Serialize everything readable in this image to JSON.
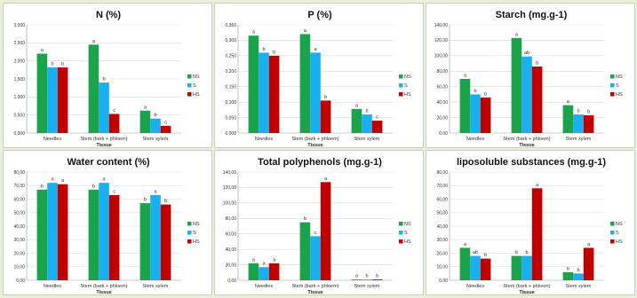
{
  "colors": {
    "NS": "#1aa34a",
    "S": "#1ab0f0",
    "HS": "#c00000"
  },
  "chart_data": [
    {
      "type": "bar",
      "title": "N (%)",
      "xlabel": "Tissue",
      "categories": [
        "Needles",
        "Stem (bark + phloem)",
        "Stem xylem"
      ],
      "ylim": [
        0,
        3
      ],
      "yticks": [
        "0,000",
        "0,500",
        "1,000",
        "1,500",
        "2,000",
        "2,500",
        "3,000"
      ],
      "series": [
        {
          "name": "NS",
          "values": [
            2.2,
            2.45,
            0.62
          ]
        },
        {
          "name": "S",
          "values": [
            1.82,
            1.4,
            0.4
          ]
        },
        {
          "name": "HS",
          "values": [
            1.82,
            0.53,
            0.2
          ]
        }
      ],
      "labels": [
        [
          "a",
          "a",
          "a"
        ],
        [
          "b",
          "b",
          "b"
        ],
        [
          "b",
          "c",
          "c"
        ]
      ]
    },
    {
      "type": "bar",
      "title": "P (%)",
      "xlabel": "Tissue",
      "categories": [
        "Needles",
        "Stem (bark + phloem)",
        "Stem xylem"
      ],
      "ylim": [
        0,
        0.35
      ],
      "yticks": [
        "0,000",
        "0,050",
        "0,100",
        "0,150",
        "0,200",
        "0,250",
        "0,300",
        "0,350"
      ],
      "series": [
        {
          "name": "NS",
          "values": [
            0.315,
            0.32,
            0.078
          ]
        },
        {
          "name": "S",
          "values": [
            0.26,
            0.26,
            0.06
          ]
        },
        {
          "name": "HS",
          "values": [
            0.25,
            0.105,
            0.04
          ]
        }
      ],
      "labels": [
        [
          "a",
          "a",
          "a"
        ],
        [
          "b",
          "a",
          "b"
        ],
        [
          "b",
          "b",
          "c"
        ]
      ]
    },
    {
      "type": "bar",
      "title": "Starch  (mg.g-1)",
      "xlabel": "Tissue",
      "categories": [
        "Needles",
        "Stem (bark + phloem)",
        "Stem xylem"
      ],
      "ylim": [
        0,
        140
      ],
      "yticks": [
        "0,00",
        "20,00",
        "40,00",
        "60,00",
        "80,00",
        "100,00",
        "120,00",
        "140,00"
      ],
      "series": [
        {
          "name": "NS",
          "values": [
            70,
            123,
            36
          ]
        },
        {
          "name": "S",
          "values": [
            50,
            99,
            24
          ]
        },
        {
          "name": "HS",
          "values": [
            46,
            86,
            23
          ]
        }
      ],
      "labels": [
        [
          "a",
          "a",
          "a"
        ],
        [
          "b",
          "ab",
          "b"
        ],
        [
          "b",
          "b",
          "b"
        ]
      ]
    },
    {
      "type": "bar",
      "title": "Water content (%)",
      "xlabel": "Tissue",
      "categories": [
        "Needles",
        "Stem (bark + phloem)",
        "Stem xylem"
      ],
      "ylim": [
        0,
        80
      ],
      "yticks": [
        "0,00",
        "10,00",
        "20,00",
        "30,00",
        "40,00",
        "50,00",
        "60,00",
        "70,00",
        "80,00"
      ],
      "series": [
        {
          "name": "NS",
          "values": [
            67,
            67,
            57
          ]
        },
        {
          "name": "S",
          "values": [
            72,
            72,
            63
          ]
        },
        {
          "name": "HS",
          "values": [
            71,
            63,
            56
          ]
        }
      ],
      "labels": [
        [
          "b",
          "b",
          "b"
        ],
        [
          "a",
          "a",
          "a"
        ],
        [
          "a",
          "c",
          "b"
        ]
      ]
    },
    {
      "type": "bar",
      "title": "Total polyphenols  (mg.g-1)",
      "xlabel": "Tissue",
      "categories": [
        "Needles",
        "Stem (bark + phloem)",
        "Stem xylem"
      ],
      "ylim": [
        0,
        140
      ],
      "yticks": [
        "0,00",
        "20,00",
        "40,00",
        "60,00",
        "80,00",
        "100,00",
        "120,00",
        "140,00"
      ],
      "series": [
        {
          "name": "NS",
          "values": [
            22,
            75,
            1
          ]
        },
        {
          "name": "S",
          "values": [
            17,
            57,
            1
          ]
        },
        {
          "name": "HS",
          "values": [
            22,
            127,
            1
          ]
        }
      ],
      "labels": [
        [
          "a",
          "b",
          "a"
        ],
        [
          "a",
          "c",
          "b"
        ],
        [
          "a",
          "a",
          "b"
        ]
      ]
    },
    {
      "type": "bar",
      "title": "liposoluble substances   (mg.g-1)",
      "xlabel": "Tissue",
      "categories": [
        "Needles",
        "Stem (bark + phloem)",
        "Stem xylem"
      ],
      "ylim": [
        0,
        80
      ],
      "yticks": [
        "0,00",
        "10,00",
        "20,00",
        "30,00",
        "40,00",
        "50,00",
        "60,00",
        "70,00",
        "80,00"
      ],
      "series": [
        {
          "name": "NS",
          "values": [
            24,
            18,
            6
          ]
        },
        {
          "name": "S",
          "values": [
            18,
            18,
            5
          ]
        },
        {
          "name": "HS",
          "values": [
            16,
            68,
            24
          ]
        }
      ],
      "labels": [
        [
          "a",
          "b",
          "b"
        ],
        [
          "ab",
          "b",
          "b"
        ],
        [
          "b",
          "a",
          "a"
        ]
      ]
    }
  ]
}
